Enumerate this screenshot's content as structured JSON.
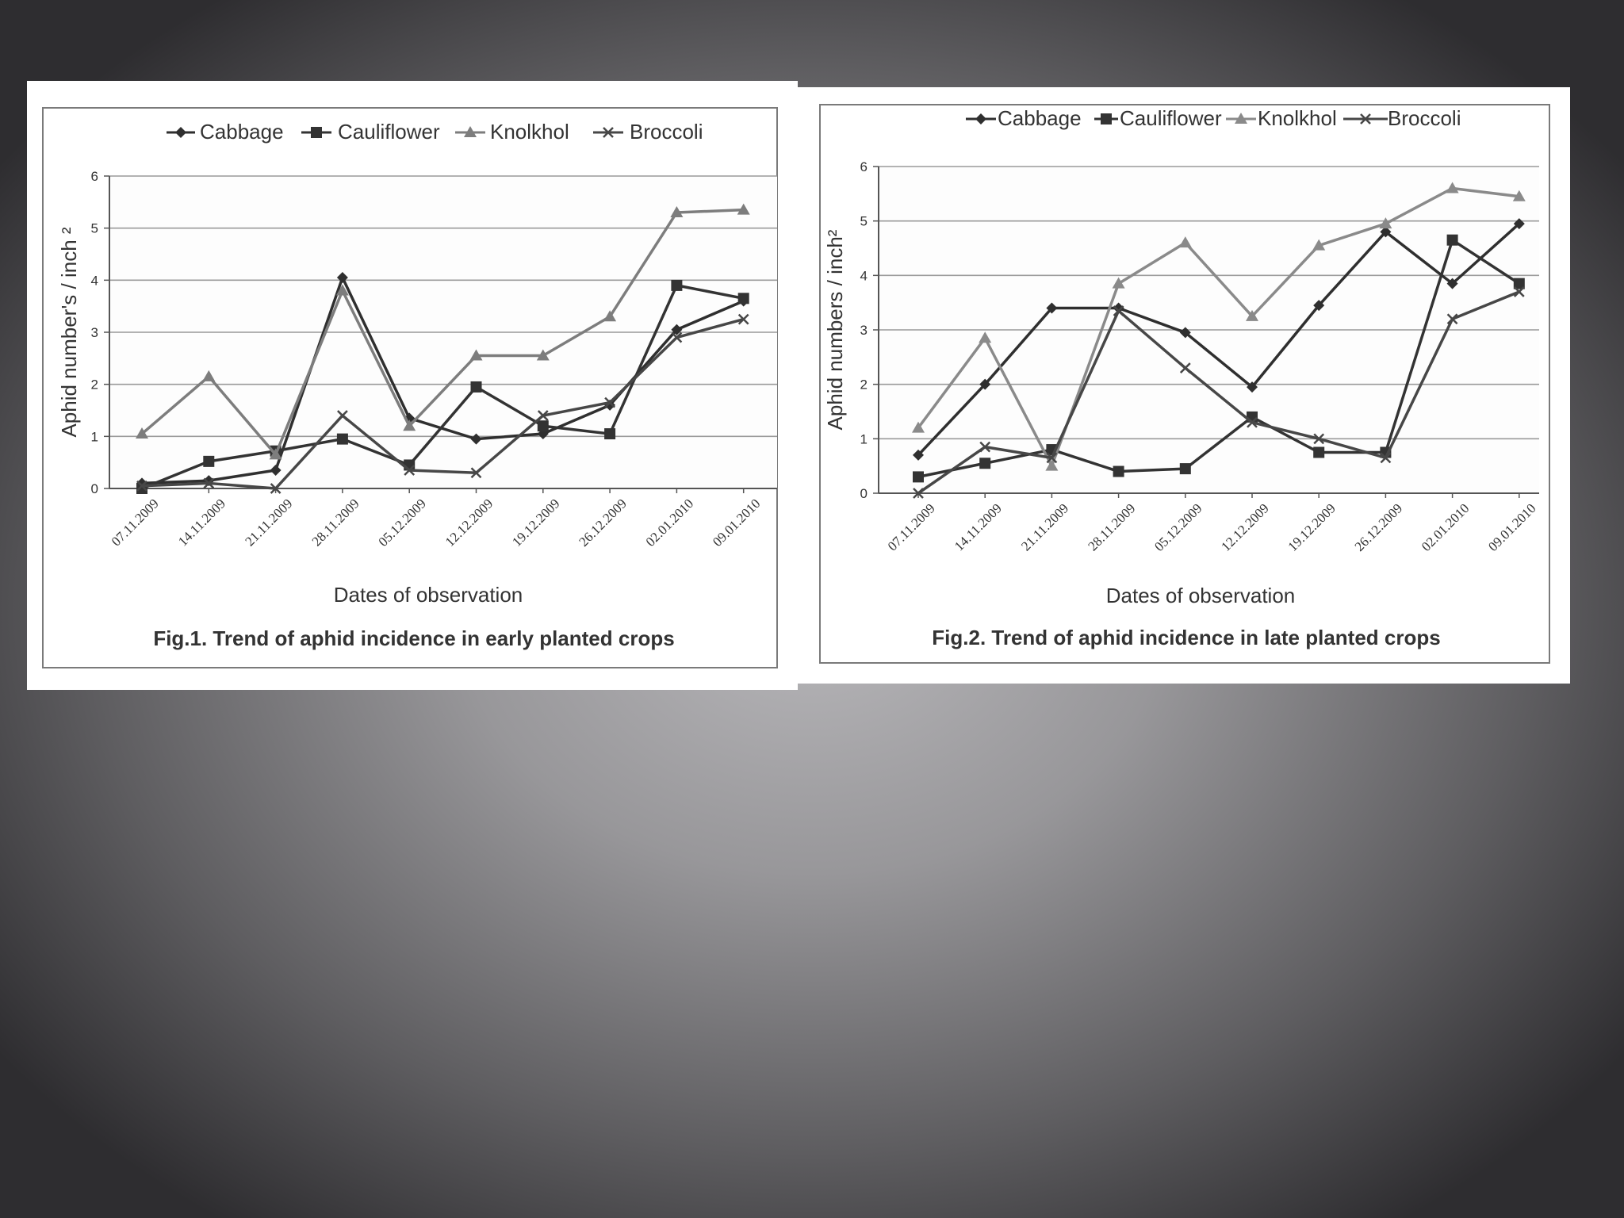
{
  "chart_data": [
    {
      "type": "line",
      "title": "Fig.1. Trend of aphid incidence in early planted crops",
      "xlabel": "Dates of observation",
      "ylabel": "Aphid number's / inch ²",
      "ylim": [
        0,
        6
      ],
      "yticks": [
        "0",
        "1",
        "2",
        "3",
        "4",
        "5",
        "6"
      ],
      "grid": true,
      "legend": "top",
      "categories": [
        "07.11.2009",
        "14.11.2009",
        "21.11.2009",
        "28.11.2009",
        "05.12.2009",
        "12.12.2009",
        "19.12.2009",
        "26.12.2009",
        "02.01.2010",
        "09.01.2010"
      ],
      "series": [
        {
          "name": "Cabbage",
          "marker": "diamond",
          "color": "#2f2f2f",
          "values": [
            0.1,
            0.15,
            0.35,
            4.05,
            1.35,
            0.95,
            1.05,
            1.6,
            3.05,
            3.6
          ]
        },
        {
          "name": "Cauliflower",
          "marker": "square",
          "color": "#333333",
          "values": [
            0.0,
            0.52,
            0.72,
            0.95,
            0.45,
            1.95,
            1.2,
            1.05,
            3.9,
            3.65
          ]
        },
        {
          "name": "Knolkhol",
          "marker": "triangle",
          "color": "#7d7d7d",
          "values": [
            1.05,
            2.15,
            0.65,
            3.8,
            1.2,
            2.55,
            2.55,
            3.3,
            5.3,
            5.35
          ]
        },
        {
          "name": "Broccoli",
          "marker": "cross",
          "color": "#474747",
          "values": [
            0.05,
            0.1,
            0.0,
            1.4,
            0.35,
            0.3,
            1.4,
            1.65,
            2.9,
            3.25
          ]
        }
      ]
    },
    {
      "type": "line",
      "title": "Fig.2. Trend of aphid incidence in late planted crops",
      "xlabel": "Dates of observation",
      "ylabel": "Aphid numbers / inch²",
      "ylim": [
        0,
        6
      ],
      "yticks": [
        "0",
        "1",
        "2",
        "3",
        "4",
        "5",
        "6"
      ],
      "grid": true,
      "legend": "top",
      "categories": [
        "07.11.2009",
        "14.11.2009",
        "21.11.2009",
        "28.11.2009",
        "05.12.2009",
        "12.12.2009",
        "19.12.2009",
        "26.12.2009",
        "02.01.2010",
        "09.01.2010"
      ],
      "series": [
        {
          "name": "Cabbage",
          "marker": "diamond",
          "color": "#2f2f2f",
          "values": [
            0.7,
            2.0,
            3.4,
            3.4,
            2.95,
            1.95,
            3.45,
            4.8,
            3.85,
            4.95
          ]
        },
        {
          "name": "Cauliflower",
          "marker": "square",
          "color": "#333333",
          "values": [
            0.3,
            0.55,
            0.8,
            0.4,
            0.45,
            1.4,
            0.75,
            0.75,
            4.65,
            3.85
          ]
        },
        {
          "name": "Knolkhol",
          "marker": "triangle",
          "color": "#8a8a8a",
          "values": [
            1.2,
            2.85,
            0.5,
            3.85,
            4.6,
            3.25,
            4.55,
            4.95,
            5.6,
            5.45
          ]
        },
        {
          "name": "Broccoli",
          "marker": "cross",
          "color": "#474747",
          "values": [
            0.0,
            0.85,
            0.65,
            3.35,
            2.3,
            1.3,
            1.0,
            0.65,
            3.2,
            3.7
          ]
        }
      ]
    }
  ]
}
